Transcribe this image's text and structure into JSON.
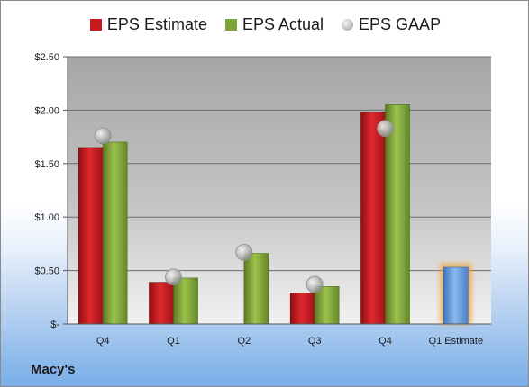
{
  "company": "Macy's",
  "chart_data": {
    "type": "bar",
    "categories": [
      "Q4",
      "Q1",
      "Q2",
      "Q3",
      "Q4",
      "Q1 Estimate"
    ],
    "series": [
      {
        "name": "EPS Estimate",
        "values": [
          1.65,
          0.39,
          null,
          0.29,
          1.98,
          null
        ],
        "color": "#c9181e"
      },
      {
        "name": "EPS Actual",
        "values": [
          1.7,
          0.43,
          0.66,
          0.35,
          2.05,
          0.53
        ],
        "color": "#7ea33a"
      },
      {
        "name": "EPS GAAP",
        "values": [
          1.76,
          0.44,
          0.67,
          0.37,
          1.83,
          null
        ],
        "color": "#a9a9a9",
        "marker": "circle"
      }
    ],
    "forecast_color": "#6a9fdc",
    "forecast_glow": "#f0a030",
    "ylim": [
      0,
      2.5
    ],
    "yticks": [
      0,
      0.5,
      1,
      1.5,
      2,
      2.5
    ],
    "ytick_labels": [
      "$-",
      "$0.50",
      "$1.00",
      "$1.50",
      "$2.00",
      "$2.50"
    ],
    "legend_position": "top",
    "grid": true,
    "title": "",
    "xlabel": "",
    "ylabel": ""
  }
}
